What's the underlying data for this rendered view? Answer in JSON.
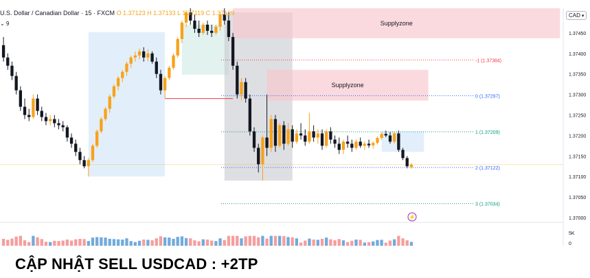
{
  "symbol": {
    "name": "U.S. Dollar / Canadian Dollar · 15 · FXCM",
    "ohlc": "O 1.37123  H 1.37133  L 1.37119  C 1.37129",
    "interval_toggle": "9"
  },
  "currency": "CAD",
  "headline": "CẬP NHẬT SELL USDCAD : +2TP",
  "chart_data": {
    "type": "candlestick",
    "price_axis": {
      "ticks": [
        "1.37450",
        "1.37400",
        "1.37350",
        "1.37300",
        "1.37250",
        "1.37200",
        "1.37150",
        "1.37100",
        "1.37050",
        "1.37000"
      ],
      "range": [
        1.36995,
        1.3751
      ]
    },
    "volume_axis": {
      "ticks": [
        "5K",
        "0"
      ]
    },
    "zones": [
      {
        "label": "Supplyzone",
        "top": 1.3751,
        "bottom": 1.37437,
        "start_bar": 54,
        "end_bar": 131
      },
      {
        "label": "Supplyzone",
        "top": 1.3736,
        "bottom": 1.37285,
        "start_bar": 62,
        "end_bar": 100
      }
    ],
    "fib_levels": [
      {
        "label": "-1 (1.37384)",
        "value": 1.37384,
        "color": "#f23645"
      },
      {
        "label": "0 (1.37297)",
        "value": 1.37297,
        "color": "#2962ff"
      },
      {
        "label": "1 (1.37209)",
        "value": 1.37209,
        "color": "#089981"
      },
      {
        "label": "2 (1.37122)",
        "value": 1.37122,
        "color": "#2962ff"
      },
      {
        "label": "3 (1.37034)",
        "value": 1.37034,
        "color": "#089981"
      }
    ],
    "highlight_rects": [
      {
        "start_bar": 20,
        "end_bar": 38,
        "top": 1.37452,
        "bottom": 1.371,
        "color": "#cfe4f8"
      },
      {
        "start_bar": 42,
        "end_bar": 53,
        "top": 1.3747,
        "bottom": 1.37348,
        "color": "#cfe9e5"
      },
      {
        "start_bar": 52,
        "end_bar": 68,
        "top": 1.375,
        "bottom": 1.3709,
        "color": "#c8c9cf"
      },
      {
        "start_bar": 89,
        "end_bar": 99,
        "top": 1.3721,
        "bottom": 1.3716,
        "color": "#cfe4f8"
      }
    ],
    "support_line": {
      "value": 1.3729,
      "start_bar": 38,
      "end_bar": 54,
      "color": "#f23645"
    },
    "last_price": 1.37129,
    "candles": [
      [
        1.3742,
        1.3744,
        1.3738,
        1.3739
      ],
      [
        1.3739,
        1.374,
        1.3736,
        1.3737
      ],
      [
        1.3737,
        1.3738,
        1.37335,
        1.37345
      ],
      [
        1.37345,
        1.37355,
        1.373,
        1.3731
      ],
      [
        1.3731,
        1.3732,
        1.3726,
        1.3727
      ],
      [
        1.3727,
        1.3729,
        1.3724,
        1.3725
      ],
      [
        1.3725,
        1.37265,
        1.37235,
        1.37245
      ],
      [
        1.37245,
        1.373,
        1.3724,
        1.3729
      ],
      [
        1.3729,
        1.373,
        1.3725,
        1.3726
      ],
      [
        1.3726,
        1.3727,
        1.37235,
        1.37245
      ],
      [
        1.37245,
        1.37255,
        1.37225,
        1.37235
      ],
      [
        1.37235,
        1.3725,
        1.37225,
        1.3724
      ],
      [
        1.3724,
        1.3725,
        1.3722,
        1.3723
      ],
      [
        1.3723,
        1.3724,
        1.37215,
        1.37225
      ],
      [
        1.37225,
        1.37235,
        1.3721,
        1.3722
      ],
      [
        1.3722,
        1.37225,
        1.37185,
        1.37195
      ],
      [
        1.37195,
        1.37205,
        1.3717,
        1.3718
      ],
      [
        1.3718,
        1.3719,
        1.3715,
        1.3716
      ],
      [
        1.3716,
        1.3717,
        1.3713,
        1.3714
      ],
      [
        1.3714,
        1.3715,
        1.3712,
        1.37125
      ],
      [
        1.37125,
        1.37145,
        1.371,
        1.3714
      ],
      [
        1.3714,
        1.3718,
        1.37135,
        1.37175
      ],
      [
        1.37175,
        1.37215,
        1.3717,
        1.3721
      ],
      [
        1.3721,
        1.37245,
        1.37205,
        1.3724
      ],
      [
        1.3724,
        1.3727,
        1.37235,
        1.37265
      ],
      [
        1.37265,
        1.373,
        1.37255,
        1.37295
      ],
      [
        1.37295,
        1.37325,
        1.3729,
        1.3732
      ],
      [
        1.3732,
        1.37345,
        1.3731,
        1.3734
      ],
      [
        1.3734,
        1.3736,
        1.3733,
        1.37355
      ],
      [
        1.37355,
        1.3738,
        1.37345,
        1.37375
      ],
      [
        1.37375,
        1.37395,
        1.37365,
        1.3739
      ],
      [
        1.3739,
        1.37405,
        1.3738,
        1.37395
      ],
      [
        1.37395,
        1.37412,
        1.37385,
        1.37405
      ],
      [
        1.37405,
        1.37415,
        1.3738,
        1.3739
      ],
      [
        1.3739,
        1.3741,
        1.3738,
        1.374
      ],
      [
        1.374,
        1.37405,
        1.37375,
        1.3738
      ],
      [
        1.3738,
        1.3739,
        1.3734,
        1.3735
      ],
      [
        1.3735,
        1.3736,
        1.373,
        1.3731
      ],
      [
        1.3731,
        1.37345,
        1.3729,
        1.3734
      ],
      [
        1.3734,
        1.3737,
        1.37335,
        1.37365
      ],
      [
        1.37365,
        1.374,
        1.3736,
        1.37395
      ],
      [
        1.37395,
        1.3744,
        1.3739,
        1.37435
      ],
      [
        1.37435,
        1.3748,
        1.37425,
        1.37475
      ],
      [
        1.37475,
        1.37505,
        1.37465,
        1.375
      ],
      [
        1.375,
        1.3751,
        1.3747,
        1.3748
      ],
      [
        1.3748,
        1.37495,
        1.3745,
        1.3746
      ],
      [
        1.3746,
        1.3748,
        1.3744,
        1.3745
      ],
      [
        1.3745,
        1.37475,
        1.37445,
        1.3747
      ],
      [
        1.3747,
        1.3748,
        1.37445,
        1.37455
      ],
      [
        1.37455,
        1.3747,
        1.3744,
        1.3745
      ],
      [
        1.3745,
        1.3747,
        1.37445,
        1.37465
      ],
      [
        1.37465,
        1.375,
        1.37455,
        1.37495
      ],
      [
        1.37495,
        1.3751,
        1.3747,
        1.3748
      ],
      [
        1.3748,
        1.375,
        1.3743,
        1.3744
      ],
      [
        1.3744,
        1.3745,
        1.3736,
        1.3737
      ],
      [
        1.3737,
        1.3738,
        1.3729,
        1.373
      ],
      [
        1.373,
        1.3734,
        1.37285,
        1.3733
      ],
      [
        1.3733,
        1.3734,
        1.3728,
        1.3729
      ],
      [
        1.3729,
        1.373,
        1.372,
        1.3721
      ],
      [
        1.3721,
        1.3722,
        1.3716,
        1.3717
      ],
      [
        1.3717,
        1.3718,
        1.3711,
        1.3713
      ],
      [
        1.3713,
        1.372,
        1.3709,
        1.37195
      ],
      [
        1.37195,
        1.373,
        1.3715,
        1.3717
      ],
      [
        1.3717,
        1.3725,
        1.3716,
        1.3724
      ],
      [
        1.3724,
        1.3725,
        1.3716,
        1.37175
      ],
      [
        1.37175,
        1.3723,
        1.3717,
        1.37225
      ],
      [
        1.37225,
        1.37235,
        1.37165,
        1.3718
      ],
      [
        1.3718,
        1.3723,
        1.37175,
        1.37215
      ],
      [
        1.37215,
        1.37225,
        1.3717,
        1.37185
      ],
      [
        1.37185,
        1.37215,
        1.3718,
        1.37205
      ],
      [
        1.37205,
        1.3723,
        1.3719,
        1.372
      ],
      [
        1.372,
        1.37215,
        1.37175,
        1.37185
      ],
      [
        1.37185,
        1.37255,
        1.3718,
        1.3721
      ],
      [
        1.3721,
        1.37225,
        1.37185,
        1.37195
      ],
      [
        1.37195,
        1.37215,
        1.3718,
        1.37205
      ],
      [
        1.37205,
        1.37215,
        1.37165,
        1.37175
      ],
      [
        1.37175,
        1.37215,
        1.3717,
        1.3721
      ],
      [
        1.3721,
        1.3722,
        1.3718,
        1.3719
      ],
      [
        1.3719,
        1.372,
        1.3717,
        1.3718
      ],
      [
        1.3718,
        1.37195,
        1.37155,
        1.37165
      ],
      [
        1.37165,
        1.3719,
        1.37155,
        1.37185
      ],
      [
        1.37185,
        1.372,
        1.3717,
        1.3718
      ],
      [
        1.3718,
        1.3719,
        1.3716,
        1.3717
      ],
      [
        1.3717,
        1.3719,
        1.37165,
        1.37185
      ],
      [
        1.37185,
        1.37195,
        1.3717,
        1.37175
      ],
      [
        1.37175,
        1.37185,
        1.37165,
        1.3718
      ],
      [
        1.3718,
        1.3719,
        1.3717,
        1.37176
      ],
      [
        1.37176,
        1.37186,
        1.37168,
        1.37182
      ],
      [
        1.37182,
        1.37198,
        1.37178,
        1.37194
      ],
      [
        1.37194,
        1.37208,
        1.3719,
        1.37204
      ],
      [
        1.37204,
        1.37212,
        1.37196,
        1.372
      ],
      [
        1.372,
        1.37208,
        1.3718,
        1.37185
      ],
      [
        1.37185,
        1.3721,
        1.3718,
        1.37205
      ],
      [
        1.37205,
        1.37212,
        1.3716,
        1.37165
      ],
      [
        1.37165,
        1.3717,
        1.3714,
        1.37145
      ],
      [
        1.37145,
        1.3715,
        1.3712,
        1.37125
      ],
      [
        1.37123,
        1.37133,
        1.37119,
        1.37129
      ]
    ]
  }
}
